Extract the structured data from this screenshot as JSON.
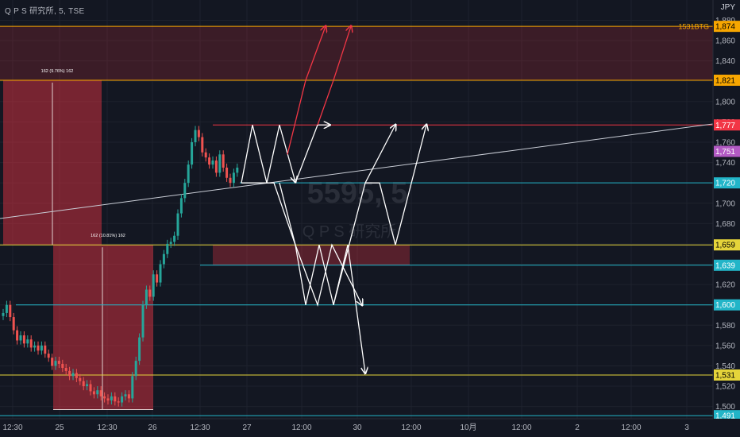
{
  "header": {
    "title": "Q P S 研究所, 5, TSE",
    "currency": "JPY"
  },
  "watermark": {
    "symbol": "5595, 5",
    "name": "Q P S 研究所"
  },
  "colors": {
    "background": "#131722",
    "grid": "#1e222d",
    "text": "#b2b5be",
    "up": "#26a69a",
    "down": "#ef5350",
    "orange": "#f7a600",
    "red": "#f23645",
    "cyan": "#22b5c8",
    "yellow": "#e5d43a",
    "purple": "#b35ac4",
    "white": "#ffffff"
  },
  "chart_data": {
    "type": "candlestick",
    "ylim": [
      1488,
      1898
    ],
    "y_ticks": [
      1500,
      1520,
      1540,
      1560,
      1580,
      1600,
      1620,
      1640,
      1660,
      1680,
      1700,
      1720,
      1740,
      1760,
      1780,
      1800,
      1820,
      1840,
      1860,
      1880
    ],
    "x_ticks": [
      "12:30",
      "25",
      "12:30",
      "26",
      "12:30",
      "27",
      "12:00",
      "30",
      "12:00",
      "10月",
      "12:00",
      "2",
      "12:00",
      "3"
    ],
    "price_labels": [
      {
        "value": "1,874",
        "color": "orange"
      },
      {
        "value": "1,821",
        "color": "orange"
      },
      {
        "value": "1,777",
        "color": "red"
      },
      {
        "value": "1,751",
        "color": "purple"
      },
      {
        "value": "1,720",
        "color": "cyan"
      },
      {
        "value": "1,659",
        "color": "yellow"
      },
      {
        "value": "1,639",
        "color": "cyan"
      },
      {
        "value": "1,600",
        "color": "cyan"
      },
      {
        "value": "1,531",
        "color": "yellow"
      },
      {
        "value": "1,491",
        "color": "cyan"
      }
    ],
    "level_tag": "1531BTG",
    "measure_labels": [
      "162 (9.76%) 162",
      "162 (10.81%) 162"
    ],
    "candles_close": [
      1592,
      1600,
      1588,
      1575,
      1565,
      1570,
      1562,
      1566,
      1558,
      1560,
      1555,
      1560,
      1552,
      1548,
      1540,
      1545,
      1542,
      1538,
      1535,
      1530,
      1533,
      1528,
      1525,
      1520,
      1522,
      1515,
      1512,
      1516,
      1510,
      1508,
      1506,
      1510,
      1505,
      1504,
      1510,
      1512,
      1508,
      1530,
      1545,
      1568,
      1600,
      1615,
      1608,
      1630,
      1622,
      1640,
      1650,
      1660,
      1662,
      1668,
      1690,
      1705,
      1720,
      1738,
      1760,
      1772,
      1765,
      1750,
      1745,
      1738,
      1742,
      1730,
      1748,
      1735,
      1725,
      1720,
      1730,
      1735
    ]
  }
}
